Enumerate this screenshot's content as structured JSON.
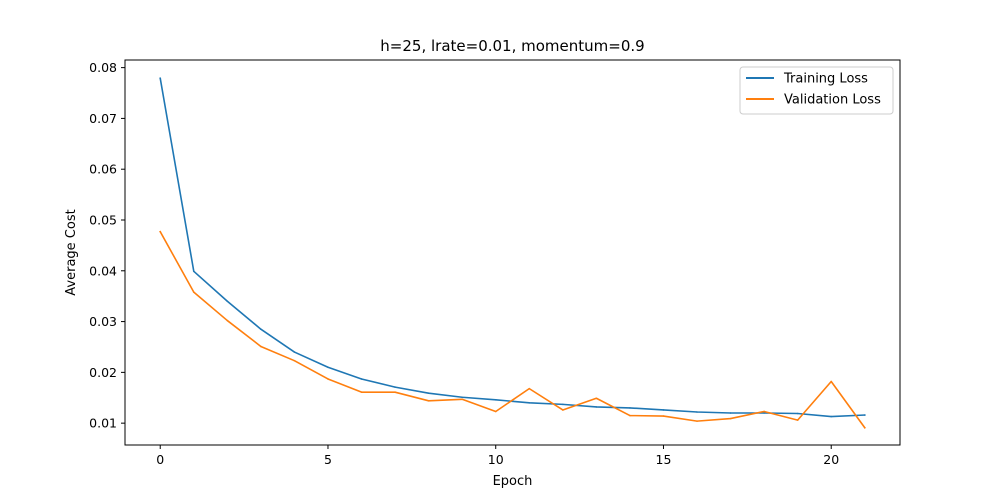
{
  "chart_data": {
    "type": "line",
    "title": "h=25, lrate=0.01, momentum=0.9",
    "xlabel": "Epoch",
    "ylabel": "Average Cost",
    "xlim": [
      -1.05,
      22.05
    ],
    "ylim": [
      0.0057,
      0.0815
    ],
    "xticks": [
      0,
      5,
      10,
      15,
      20
    ],
    "xtick_labels": [
      "0",
      "5",
      "10",
      "15",
      "20"
    ],
    "yticks": [
      0.01,
      0.02,
      0.03,
      0.04,
      0.05,
      0.06,
      0.07,
      0.08
    ],
    "ytick_labels": [
      "0.01",
      "0.02",
      "0.03",
      "0.04",
      "0.05",
      "0.06",
      "0.07",
      "0.08"
    ],
    "grid": false,
    "legend_position": "top-right",
    "x": [
      0,
      1,
      2,
      3,
      4,
      5,
      6,
      7,
      8,
      9,
      10,
      11,
      12,
      13,
      14,
      15,
      16,
      17,
      18,
      19,
      20,
      21
    ],
    "series": [
      {
        "name": "Training Loss",
        "color": "#1f77b4",
        "values": [
          0.0779,
          0.0399,
          0.034,
          0.0285,
          0.024,
          0.021,
          0.0187,
          0.0171,
          0.0159,
          0.0151,
          0.0146,
          0.014,
          0.0137,
          0.0132,
          0.013,
          0.0126,
          0.0122,
          0.012,
          0.012,
          0.0119,
          0.0113,
          0.0116
        ]
      },
      {
        "name": "Validation Loss",
        "color": "#ff7f0e",
        "values": [
          0.0477,
          0.0358,
          0.0302,
          0.0251,
          0.0223,
          0.0187,
          0.0161,
          0.0161,
          0.0144,
          0.0147,
          0.0123,
          0.0168,
          0.0126,
          0.0149,
          0.0115,
          0.0114,
          0.0104,
          0.0109,
          0.0123,
          0.0106,
          0.0182,
          0.0091
        ]
      }
    ]
  }
}
